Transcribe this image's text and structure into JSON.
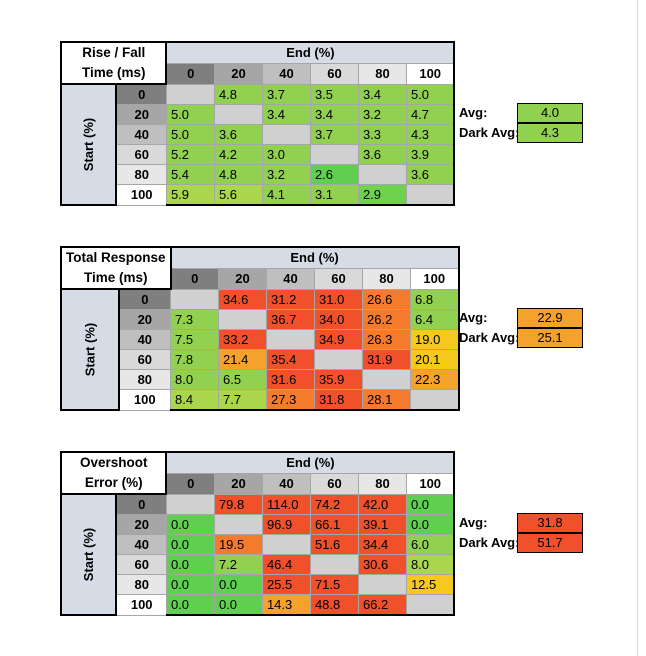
{
  "tables": [
    {
      "corner": [
        "Rise / Fall",
        "Time (ms)"
      ],
      "end_label": "End (%)",
      "start_label": "Start (%)",
      "avg_label": "Avg:",
      "dark_avg_label": "Dark Avg:",
      "avg_value": "4.0",
      "dark_avg_value": "4.3",
      "avg_color": "#92d050",
      "dark_avg_color": "#92d050"
    },
    {
      "corner": [
        "Total Response",
        "Time (ms)"
      ],
      "end_label": "End (%)",
      "start_label": "Start (%)",
      "avg_label": "Avg:",
      "dark_avg_label": "Dark Avg:",
      "avg_value": "22.9",
      "dark_avg_value": "25.1",
      "avg_color": "#f4a22c",
      "dark_avg_color": "#f4a22c"
    },
    {
      "corner": [
        "Overshoot",
        "Error (%)"
      ],
      "end_label": "End (%)",
      "start_label": "Start (%)",
      "avg_label": "Avg:",
      "dark_avg_label": "Dark Avg:",
      "avg_value": "31.8",
      "dark_avg_value": "51.7",
      "avg_color": "#f0502a",
      "dark_avg_color": "#f0502a"
    }
  ],
  "chart_data": [
    {
      "type": "heatmap",
      "title": "Rise / Fall Time (ms)",
      "xlabel": "End (%)",
      "ylabel": "Start (%)",
      "x": [
        "0",
        "20",
        "40",
        "60",
        "80",
        "100"
      ],
      "y": [
        "0",
        "20",
        "40",
        "60",
        "80",
        "100"
      ],
      "values": [
        [
          null,
          4.8,
          3.7,
          3.5,
          3.4,
          5.0
        ],
        [
          5.0,
          null,
          3.4,
          3.4,
          3.2,
          4.7
        ],
        [
          5.0,
          3.6,
          null,
          3.7,
          3.3,
          4.3
        ],
        [
          5.2,
          4.2,
          3.0,
          null,
          3.6,
          3.9
        ],
        [
          5.4,
          4.8,
          3.2,
          2.6,
          null,
          3.6
        ],
        [
          5.9,
          5.6,
          4.1,
          3.1,
          2.9,
          null
        ]
      ],
      "colors": [
        [
          "#d0d0d0",
          "#92d050",
          "#92d050",
          "#92d050",
          "#92d050",
          "#92d050"
        ],
        [
          "#92d050",
          "#d0d0d0",
          "#92d050",
          "#92d050",
          "#92d050",
          "#92d050"
        ],
        [
          "#92d050",
          "#92d050",
          "#d0d0d0",
          "#92d050",
          "#92d050",
          "#92d050"
        ],
        [
          "#92d050",
          "#92d050",
          "#92d050",
          "#d0d0d0",
          "#92d050",
          "#92d050"
        ],
        [
          "#92d050",
          "#92d050",
          "#92d050",
          "#5fcf4f",
          "#d0d0d0",
          "#92d050"
        ],
        [
          "#a9d64a",
          "#a9d64a",
          "#92d050",
          "#92d050",
          "#6ed24e",
          "#d0d0d0"
        ]
      ]
    },
    {
      "type": "heatmap",
      "title": "Total Response Time (ms)",
      "xlabel": "End (%)",
      "ylabel": "Start (%)",
      "x": [
        "0",
        "20",
        "40",
        "60",
        "80",
        "100"
      ],
      "y": [
        "0",
        "20",
        "40",
        "60",
        "80",
        "100"
      ],
      "values": [
        [
          null,
          34.6,
          31.2,
          31.0,
          26.6,
          6.8
        ],
        [
          7.3,
          null,
          36.7,
          34.0,
          26.2,
          6.4
        ],
        [
          7.5,
          33.2,
          null,
          34.9,
          26.3,
          19.0
        ],
        [
          7.8,
          21.4,
          35.4,
          null,
          31.9,
          20.1
        ],
        [
          8.0,
          6.5,
          31.6,
          35.9,
          null,
          22.3
        ],
        [
          8.4,
          7.7,
          27.3,
          31.8,
          28.1,
          null
        ]
      ],
      "colors": [
        [
          "#d0d0d0",
          "#f0502a",
          "#f0502a",
          "#f0502a",
          "#f47a2c",
          "#92d050"
        ],
        [
          "#92d050",
          "#d0d0d0",
          "#f0502a",
          "#f0502a",
          "#f47a2c",
          "#92d050"
        ],
        [
          "#92d050",
          "#f0502a",
          "#d0d0d0",
          "#f0502a",
          "#f47a2c",
          "#f5c81d"
        ],
        [
          "#92d050",
          "#f4a22c",
          "#f0502a",
          "#d0d0d0",
          "#f0502a",
          "#f5c81d"
        ],
        [
          "#92d050",
          "#92d050",
          "#f0502a",
          "#f0502a",
          "#d0d0d0",
          "#f4a22c"
        ],
        [
          "#a9d64a",
          "#a9d64a",
          "#f47a2c",
          "#f0502a",
          "#f47a2c",
          "#d0d0d0"
        ]
      ]
    },
    {
      "type": "heatmap",
      "title": "Overshoot Error (%)",
      "xlabel": "End (%)",
      "ylabel": "Start (%)",
      "x": [
        "0",
        "20",
        "40",
        "60",
        "80",
        "100"
      ],
      "y": [
        "0",
        "20",
        "40",
        "60",
        "80",
        "100"
      ],
      "values": [
        [
          null,
          79.8,
          114.0,
          74.2,
          42.0,
          0.0
        ],
        [
          0.0,
          null,
          96.9,
          66.1,
          39.1,
          0.0
        ],
        [
          0.0,
          19.5,
          null,
          51.6,
          34.4,
          6.0
        ],
        [
          0.0,
          7.2,
          46.4,
          null,
          30.6,
          8.0
        ],
        [
          0.0,
          0.0,
          25.5,
          71.5,
          null,
          12.5
        ],
        [
          0.0,
          0.0,
          14.3,
          48.8,
          66.2,
          null
        ]
      ],
      "colors": [
        [
          "#d0d0d0",
          "#f0502a",
          "#f0502a",
          "#f0502a",
          "#f0502a",
          "#5fcf4f"
        ],
        [
          "#5fcf4f",
          "#d0d0d0",
          "#f0502a",
          "#f0502a",
          "#f0502a",
          "#5fcf4f"
        ],
        [
          "#5fcf4f",
          "#f47a2c",
          "#d0d0d0",
          "#f0502a",
          "#f0502a",
          "#92d050"
        ],
        [
          "#5fcf4f",
          "#92d050",
          "#f0502a",
          "#d0d0d0",
          "#f0502a",
          "#a9d64a"
        ],
        [
          "#5fcf4f",
          "#5fcf4f",
          "#f0502a",
          "#f0502a",
          "#d0d0d0",
          "#f5c81d"
        ],
        [
          "#5fcf4f",
          "#5fcf4f",
          "#f4a22c",
          "#f0502a",
          "#f0502a",
          "#d0d0d0"
        ]
      ]
    }
  ]
}
